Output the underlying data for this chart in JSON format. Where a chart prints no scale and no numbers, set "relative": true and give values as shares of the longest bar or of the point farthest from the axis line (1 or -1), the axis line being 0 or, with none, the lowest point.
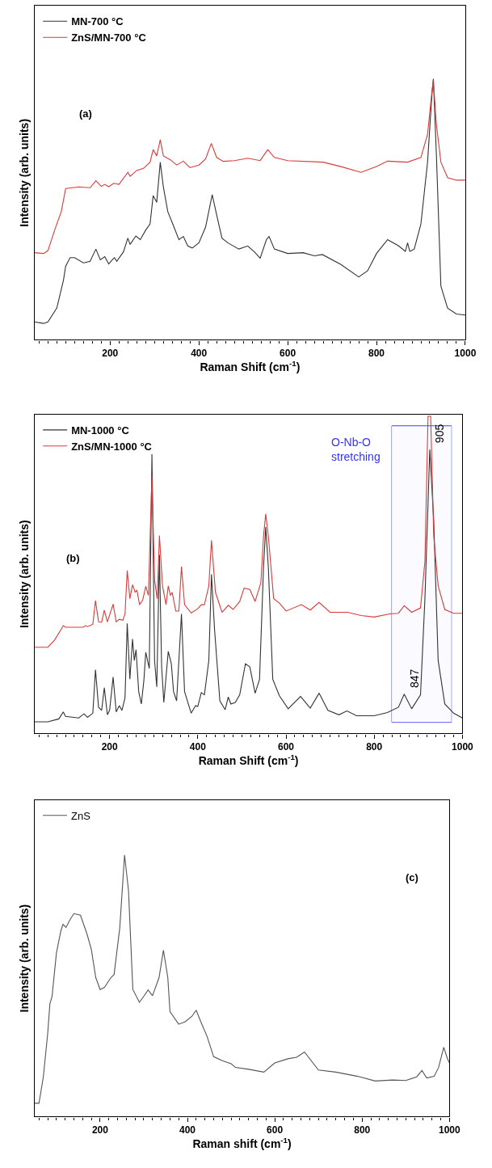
{
  "chart_data": [
    {
      "type": "line",
      "relative": true,
      "xlabel": "Raman Shift (cm$^{-1}$)",
      "ylabel": "Intensity (arb. units)",
      "xlim": [
        30,
        1000
      ],
      "xticks": [
        200,
        400,
        600,
        800,
        1000
      ],
      "tick_labels": "x",
      "legend": "top left",
      "annotations": [
        "(a)"
      ],
      "series": [
        {
          "name": "MN-700 °C",
          "color": "#333333",
          "x": [
            30,
            50,
            60,
            80,
            95,
            100,
            110,
            120,
            140,
            155,
            168,
            178,
            188,
            197,
            205,
            210,
            215,
            230,
            240,
            245,
            258,
            268,
            280,
            290,
            297,
            305,
            313,
            320,
            330,
            340,
            355,
            365,
            375,
            385,
            400,
            415,
            430,
            440,
            452,
            465,
            490,
            510,
            525,
            538,
            552,
            558,
            570,
            600,
            635,
            660,
            678,
            720,
            760,
            780,
            800,
            825,
            850,
            865,
            870,
            875,
            885,
            900,
            915,
            925,
            928,
            935,
            945,
            960,
            980,
            1000
          ],
          "values": [
            0.069,
            0.063,
            0.069,
            0.122,
            0.229,
            0.283,
            0.315,
            0.315,
            0.295,
            0.301,
            0.348,
            0.307,
            0.319,
            0.291,
            0.307,
            0.315,
            0.301,
            0.337,
            0.39,
            0.366,
            0.398,
            0.384,
            0.42,
            0.444,
            0.553,
            0.527,
            0.681,
            0.586,
            0.491,
            0.449,
            0.384,
            0.396,
            0.36,
            0.352,
            0.372,
            0.432,
            0.556,
            0.479,
            0.39,
            0.372,
            0.348,
            0.36,
            0.337,
            0.313,
            0.384,
            0.396,
            0.348,
            0.331,
            0.334,
            0.322,
            0.327,
            0.289,
            0.241,
            0.265,
            0.331,
            0.384,
            0.36,
            0.339,
            0.372,
            0.339,
            0.348,
            0.444,
            0.681,
            0.943,
            1.0,
            0.705,
            0.206,
            0.122,
            0.099,
            0.095
          ]
        },
        {
          "name": "ZnS/MN-700 °C",
          "color": "#d93a3a",
          "x": [
            30,
            50,
            60,
            75,
            90,
            100,
            130,
            155,
            168,
            180,
            188,
            197,
            208,
            220,
            240,
            245,
            260,
            275,
            290,
            297,
            305,
            313,
            320,
            335,
            350,
            365,
            380,
            400,
            415,
            428,
            440,
            455,
            480,
            510,
            538,
            555,
            570,
            600,
            680,
            720,
            765,
            800,
            825,
            870,
            900,
            915,
            925,
            928,
            935,
            945,
            960,
            980,
            1000
          ],
          "values": [
            0.334,
            0.331,
            0.342,
            0.42,
            0.491,
            0.58,
            0.586,
            0.583,
            0.61,
            0.588,
            0.596,
            0.587,
            0.6,
            0.596,
            0.642,
            0.627,
            0.649,
            0.657,
            0.681,
            0.729,
            0.705,
            0.767,
            0.705,
            0.691,
            0.67,
            0.685,
            0.66,
            0.67,
            0.693,
            0.753,
            0.699,
            0.684,
            0.687,
            0.696,
            0.687,
            0.729,
            0.699,
            0.687,
            0.681,
            0.664,
            0.642,
            0.664,
            0.685,
            0.681,
            0.699,
            0.788,
            0.955,
            0.993,
            0.824,
            0.681,
            0.622,
            0.612,
            0.612
          ]
        }
      ]
    },
    {
      "type": "line",
      "relative": true,
      "xlabel": "Raman Shift (cm$^{-1}$)",
      "ylabel": "Intensity (arb. units)",
      "xlim": [
        30,
        1000
      ],
      "xticks": [
        200,
        400,
        600,
        800,
        1000
      ],
      "tick_labels": "x",
      "legend": "top left",
      "annotations": [
        "(b)",
        {
          "text": "905",
          "x": 926,
          "y": 0.895
        },
        {
          "text": "847",
          "x": 868,
          "y": 0.124
        }
      ],
      "bands": [
        {
          "axis": "x",
          "from": 840,
          "to": 975,
          "label": "O-Nb-O\nstretching",
          "color": "#3333ff"
        }
      ],
      "series": [
        {
          "name": "MN-1000 °C",
          "color": "#333333",
          "x": [
            30,
            60,
            85,
            95,
            100,
            130,
            142,
            150,
            162,
            168,
            175,
            182,
            188,
            195,
            200,
            208,
            215,
            222,
            228,
            235,
            240,
            246,
            252,
            256,
            260,
            266,
            272,
            278,
            282,
            286,
            290,
            296,
            302,
            307,
            313,
            318,
            323,
            333,
            340,
            345,
            352,
            363,
            370,
            385,
            395,
            400,
            408,
            415,
            425,
            431,
            438,
            450,
            462,
            469,
            475,
            485,
            495,
            508,
            518,
            530,
            540,
            549,
            554,
            560,
            570,
            585,
            605,
            633,
            655,
            675,
            695,
            720,
            738,
            760,
            800,
            830,
            855,
            868,
            885,
            905,
            915,
            926,
            935,
            945,
            960,
            980,
            1000
          ],
          "values": [
            0.037,
            0.037,
            0.046,
            0.068,
            0.054,
            0.049,
            0.062,
            0.051,
            0.064,
            0.201,
            0.083,
            0.073,
            0.144,
            0.059,
            0.073,
            0.178,
            0.068,
            0.088,
            0.073,
            0.113,
            0.347,
            0.171,
            0.298,
            0.23,
            0.264,
            0.132,
            0.093,
            0.171,
            0.256,
            0.23,
            0.205,
            0.881,
            0.23,
            0.147,
            0.563,
            0.21,
            0.098,
            0.259,
            0.22,
            0.132,
            0.103,
            0.377,
            0.132,
            0.064,
            0.088,
            0.085,
            0.129,
            0.122,
            0.23,
            0.502,
            0.328,
            0.103,
            0.075,
            0.115,
            0.093,
            0.098,
            0.122,
            0.22,
            0.21,
            0.127,
            0.171,
            0.523,
            0.651,
            0.523,
            0.171,
            0.119,
            0.078,
            0.117,
            0.08,
            0.127,
            0.073,
            0.059,
            0.071,
            0.056,
            0.056,
            0.066,
            0.083,
            0.124,
            0.078,
            0.122,
            0.426,
            0.895,
            0.67,
            0.23,
            0.093,
            0.064,
            0.049
          ]
        },
        {
          "name": "ZnS/MN-1000 °C",
          "color": "#d93a3a",
          "x": [
            30,
            60,
            75,
            90,
            95,
            100,
            140,
            145,
            150,
            162,
            168,
            175,
            182,
            188,
            195,
            208,
            215,
            222,
            230,
            235,
            240,
            246,
            252,
            258,
            262,
            268,
            275,
            282,
            288,
            296,
            302,
            308,
            313,
            320,
            328,
            333,
            338,
            342,
            350,
            357,
            363,
            370,
            385,
            400,
            408,
            415,
            425,
            431,
            440,
            455,
            469,
            480,
            495,
            505,
            518,
            530,
            543,
            549,
            554,
            560,
            572,
            585,
            600,
            635,
            655,
            675,
            700,
            740,
            770,
            800,
            835,
            855,
            868,
            885,
            905,
            915,
            922,
            928,
            935,
            945,
            960,
            980,
            1000
          ],
          "values": [
            0.272,
            0.272,
            0.294,
            0.328,
            0.34,
            0.335,
            0.335,
            0.34,
            0.337,
            0.344,
            0.419,
            0.352,
            0.351,
            0.389,
            0.352,
            0.408,
            0.352,
            0.36,
            0.357,
            0.377,
            0.514,
            0.425,
            0.469,
            0.445,
            0.452,
            0.406,
            0.42,
            0.464,
            0.435,
            0.812,
            0.483,
            0.425,
            0.624,
            0.465,
            0.406,
            0.465,
            0.435,
            0.445,
            0.386,
            0.386,
            0.526,
            0.406,
            0.38,
            0.393,
            0.406,
            0.406,
            0.465,
            0.609,
            0.445,
            0.382,
            0.404,
            0.391,
            0.416,
            0.458,
            0.454,
            0.416,
            0.475,
            0.621,
            0.692,
            0.621,
            0.425,
            0.411,
            0.386,
            0.406,
            0.389,
            0.413,
            0.382,
            0.382,
            0.372,
            0.367,
            0.377,
            0.379,
            0.403,
            0.382,
            0.396,
            0.543,
            1.0,
            1.0,
            0.621,
            0.465,
            0.391,
            0.379,
            0.379
          ]
        }
      ]
    },
    {
      "type": "line",
      "relative": true,
      "xlabel": "Raman shift (cm$^{-1}$)",
      "ylabel": "Intensity (arb. units)",
      "xlim": [
        50,
        1000
      ],
      "xticks": [
        200,
        400,
        600,
        800,
        1000
      ],
      "tick_labels": "x",
      "legend": "top left",
      "annotations": [
        "(c)"
      ],
      "series": [
        {
          "name": "ZnS",
          "color": "#555555",
          "x": [
            50,
            60,
            70,
            80,
            85,
            90,
            100,
            110,
            115,
            122,
            130,
            140,
            155,
            170,
            180,
            190,
            200,
            210,
            225,
            232,
            245,
            256,
            265,
            275,
            290,
            300,
            310,
            320,
            335,
            345,
            355,
            360,
            380,
            395,
            410,
            420,
            430,
            445,
            460,
            480,
            500,
            510,
            540,
            575,
            600,
            630,
            650,
            668,
            700,
            740,
            790,
            830,
            870,
            900,
            925,
            937,
            948,
            965,
            975,
            987,
            995,
            1000
          ],
          "values": [
            0.051,
            0.051,
            0.152,
            0.318,
            0.431,
            0.46,
            0.626,
            0.709,
            0.735,
            0.723,
            0.75,
            0.776,
            0.77,
            0.698,
            0.638,
            0.532,
            0.486,
            0.494,
            0.532,
            0.543,
            0.721,
            1.0,
            0.864,
            0.486,
            0.437,
            0.46,
            0.484,
            0.462,
            0.532,
            0.636,
            0.532,
            0.401,
            0.353,
            0.363,
            0.383,
            0.407,
            0.365,
            0.306,
            0.229,
            0.214,
            0.202,
            0.188,
            0.181,
            0.17,
            0.205,
            0.221,
            0.227,
            0.247,
            0.178,
            0.17,
            0.154,
            0.136,
            0.14,
            0.138,
            0.152,
            0.176,
            0.148,
            0.154,
            0.187,
            0.265,
            0.223,
            0.205
          ]
        }
      ]
    }
  ]
}
